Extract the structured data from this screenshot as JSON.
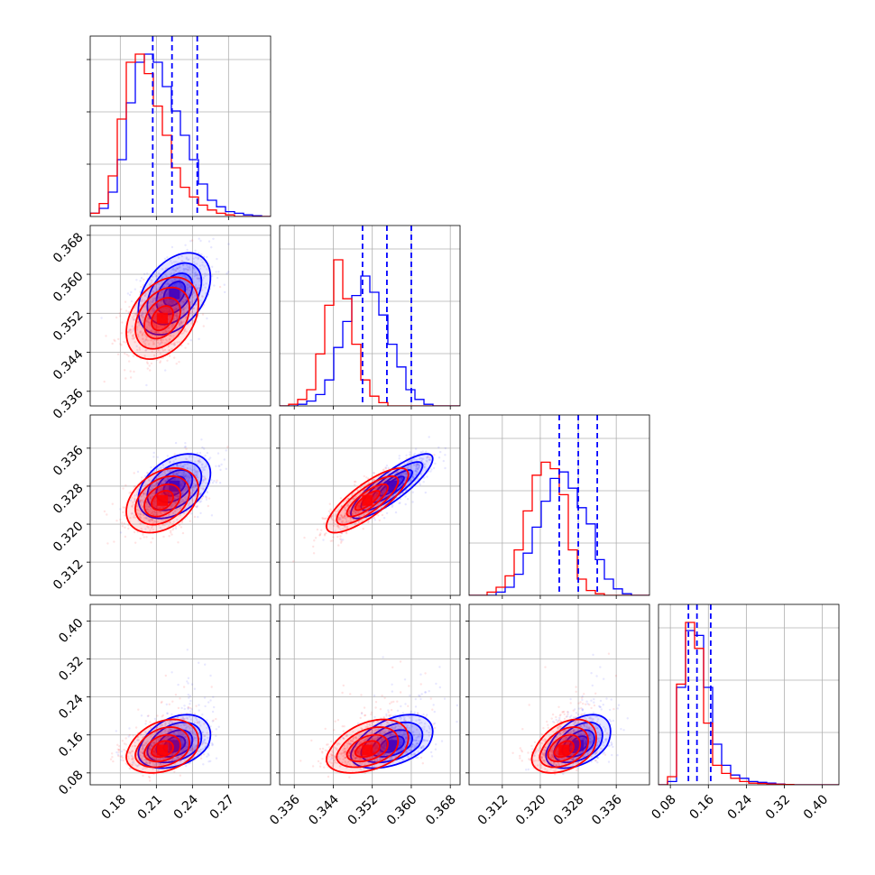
{
  "chart_data": {
    "type": "scatter",
    "title": "",
    "layout": "corner-plot",
    "n_params": 4,
    "grid": true,
    "colors": {
      "blue": "#0000ff",
      "red": "#ff0000",
      "grid": "#b0b0b0",
      "axis": "#000000"
    },
    "axis_ranges": [
      [
        0.155,
        0.305
      ],
      [
        0.333,
        0.37
      ],
      [
        0.305,
        0.343
      ],
      [
        0.055,
        0.435
      ]
    ],
    "tick_labels": [
      [
        "0.18",
        "0.21",
        "0.24",
        "0.27"
      ],
      [
        "0.336",
        "0.344",
        "0.352",
        "0.360",
        "0.368"
      ],
      [
        "0.312",
        "0.320",
        "0.328",
        "0.336"
      ],
      [
        "0.08",
        "0.16",
        "0.24",
        "0.32",
        "0.40"
      ]
    ],
    "series": [
      {
        "name": "",
        "color": "blue",
        "mean": [
          0.225,
          0.356,
          0.328,
          0.138
        ],
        "std": [
          0.015,
          0.0042,
          0.0034,
          0.024
        ],
        "corr": [
          [
            1,
            0.4,
            0.4,
            0.35
          ],
          [
            0.4,
            1,
            0.85,
            0.45
          ],
          [
            0.4,
            0.85,
            1,
            0.45
          ],
          [
            0.35,
            0.45,
            0.45,
            1
          ]
        ],
        "quantiles": [
          [
            0.207,
            0.223,
            0.244
          ],
          [
            0.35,
            0.355,
            0.36
          ],
          [
            0.324,
            0.328,
            0.332
          ],
          [
            0.118,
            0.136,
            0.165
          ]
        ],
        "hist_heights": [
          [
            0.02,
            0.05,
            0.15,
            0.35,
            0.7,
            0.95,
            1.0,
            0.95,
            0.8,
            0.65,
            0.5,
            0.35,
            0.2,
            0.1,
            0.06,
            0.03,
            0.02,
            0.01,
            0.005,
            0.0
          ],
          [
            0.0,
            0.0,
            0.01,
            0.03,
            0.07,
            0.16,
            0.36,
            0.52,
            0.68,
            0.8,
            0.7,
            0.56,
            0.38,
            0.24,
            0.1,
            0.04,
            0.01,
            0.0,
            0.0,
            0.0
          ],
          [
            0.0,
            0.0,
            0.0,
            0.02,
            0.05,
            0.13,
            0.26,
            0.42,
            0.58,
            0.72,
            0.76,
            0.66,
            0.54,
            0.44,
            0.22,
            0.1,
            0.04,
            0.01,
            0.0,
            0.0
          ],
          [
            0.0,
            0.02,
            0.6,
            0.95,
            0.92,
            0.6,
            0.25,
            0.12,
            0.06,
            0.04,
            0.02,
            0.015,
            0.01,
            0.005,
            0.0,
            0.0,
            0.0,
            0.0,
            0.0,
            0.0
          ]
        ]
      },
      {
        "name": "",
        "color": "red",
        "mean": [
          0.215,
          0.351,
          0.325,
          0.128
        ],
        "std": [
          0.015,
          0.0042,
          0.0034,
          0.024
        ],
        "corr": [
          [
            1,
            0.35,
            0.35,
            0.3
          ],
          [
            0.35,
            1,
            0.8,
            0.4
          ],
          [
            0.35,
            0.8,
            1,
            0.4
          ],
          [
            0.3,
            0.4,
            0.4,
            1
          ]
        ],
        "quantiles": [],
        "hist_heights": [
          [
            0.02,
            0.08,
            0.25,
            0.6,
            0.95,
            1.0,
            0.88,
            0.68,
            0.5,
            0.3,
            0.18,
            0.12,
            0.07,
            0.04,
            0.02,
            0.01,
            0.0,
            0.0,
            0.0,
            0.0
          ],
          [
            0.0,
            0.01,
            0.04,
            0.1,
            0.32,
            0.62,
            0.9,
            0.66,
            0.38,
            0.16,
            0.06,
            0.02,
            0.0,
            0.0,
            0.0,
            0.0,
            0.0,
            0.0,
            0.0,
            0.0
          ],
          [
            0.0,
            0.0,
            0.02,
            0.05,
            0.12,
            0.28,
            0.52,
            0.74,
            0.82,
            0.78,
            0.62,
            0.28,
            0.1,
            0.03,
            0.01,
            0.0,
            0.0,
            0.0,
            0.0,
            0.0
          ],
          [
            0.0,
            0.05,
            0.62,
            1.0,
            0.84,
            0.38,
            0.12,
            0.07,
            0.04,
            0.02,
            0.01,
            0.008,
            0.005,
            0.003,
            0.002,
            0.0,
            0.0,
            0.0,
            0.0,
            0.0
          ]
        ]
      }
    ]
  }
}
